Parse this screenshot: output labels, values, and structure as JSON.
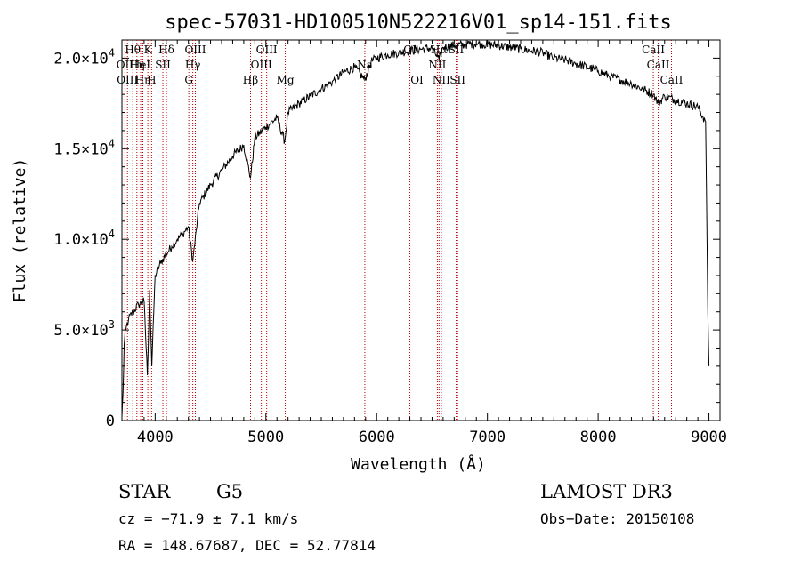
{
  "chart_data": {
    "type": "line",
    "title": "spec-57031-HD100510N522216V01_sp14-151.fits",
    "xlabel": "Wavelength (Å)",
    "ylabel": "Flux (relative)",
    "xlim": [
      3700,
      9100
    ],
    "ylim": [
      0,
      21000
    ],
    "x_ticks": [
      {
        "value": 4000,
        "label": "4000"
      },
      {
        "value": 5000,
        "label": "5000"
      },
      {
        "value": 6000,
        "label": "6000"
      },
      {
        "value": 7000,
        "label": "7000"
      },
      {
        "value": 8000,
        "label": "8000"
      },
      {
        "value": 9000,
        "label": "9000"
      }
    ],
    "y_ticks": [
      {
        "value": 0,
        "mant": "0",
        "exp": ""
      },
      {
        "value": 5000,
        "mant": "5.0×10",
        "exp": "3"
      },
      {
        "value": 10000,
        "mant": "1.0×10",
        "exp": "4"
      },
      {
        "value": 15000,
        "mant": "1.5×10",
        "exp": "4"
      },
      {
        "value": 20000,
        "mant": "2.0×10",
        "exp": "4"
      }
    ],
    "series": [
      {
        "name": "spectrum",
        "x": [
          3700,
          3710,
          3720,
          3735,
          3760,
          3800,
          3850,
          3900,
          3930,
          3950,
          3970,
          4000,
          4050,
          4100,
          4150,
          4200,
          4250,
          4300,
          4340,
          4400,
          4500,
          4600,
          4700,
          4800,
          4861,
          4900,
          5000,
          5100,
          5170,
          5200,
          5300,
          5400,
          5500,
          5600,
          5700,
          5800,
          5893,
          5950,
          6000,
          6100,
          6200,
          6300,
          6400,
          6500,
          6563,
          6600,
          6700,
          6800,
          6900,
          7000,
          7100,
          7200,
          7300,
          7400,
          7500,
          7600,
          7700,
          7800,
          7900,
          8000,
          8100,
          8200,
          8300,
          8400,
          8500,
          8542,
          8600,
          8700,
          8800,
          8900,
          8970,
          8990,
          9000
        ],
        "y": [
          200,
          1500,
          4200,
          5000,
          5600,
          6000,
          6400,
          6600,
          2500,
          7200,
          3000,
          8000,
          8700,
          9200,
          9600,
          10000,
          10300,
          10700,
          8800,
          12000,
          13000,
          13800,
          14600,
          15200,
          13400,
          15600,
          16200,
          16700,
          15400,
          17000,
          17500,
          17900,
          18300,
          18700,
          19200,
          19500,
          18800,
          19800,
          20000,
          20200,
          20300,
          20400,
          20500,
          20550,
          19900,
          20600,
          20700,
          20750,
          20800,
          20750,
          20700,
          20600,
          20500,
          20400,
          20300,
          20000,
          19900,
          19700,
          19500,
          19300,
          19000,
          18800,
          18600,
          18300,
          18000,
          17500,
          17900,
          17700,
          17500,
          17300,
          16500,
          6000,
          3000
        ]
      }
    ],
    "lines": [
      {
        "wl": 3727,
        "label": "OII",
        "row": 1
      },
      {
        "wl": 3750,
        "label": "OIII",
        "row": 2
      },
      {
        "wl": 3798,
        "label": "Hθ",
        "row": 0
      },
      {
        "wl": 3835,
        "label": "Hη",
        "row": 1
      },
      {
        "wl": 3869,
        "label": "HeI",
        "row": 1
      },
      {
        "wl": 3889,
        "label": "Hη",
        "row": 2
      },
      {
        "wl": 3934,
        "label": "K",
        "row": 0
      },
      {
        "wl": 3968,
        "label": "H",
        "row": 2
      },
      {
        "wl": 4070,
        "label": "SII",
        "row": 1
      },
      {
        "wl": 4102,
        "label": "Hδ",
        "row": 0
      },
      {
        "wl": 4304,
        "label": "G",
        "row": 2
      },
      {
        "wl": 4340,
        "label": "Hγ",
        "row": 1
      },
      {
        "wl": 4363,
        "label": "OIII",
        "row": 0
      },
      {
        "wl": 4861,
        "label": "Hβ",
        "row": 2
      },
      {
        "wl": 4959,
        "label": "OIII",
        "row": 1
      },
      {
        "wl": 5007,
        "label": "OIII",
        "row": 0
      },
      {
        "wl": 5175,
        "label": "Mg",
        "row": 2
      },
      {
        "wl": 5893,
        "label": "Na",
        "row": 1
      },
      {
        "wl": 6300,
        "label": "OI",
        "row": 0
      },
      {
        "wl": 6364,
        "label": "OI",
        "row": 2
      },
      {
        "wl": 6548,
        "label": "NII",
        "row": 1
      },
      {
        "wl": 6563,
        "label": "Hα",
        "row": 0
      },
      {
        "wl": 6584,
        "label": "NII",
        "row": 2
      },
      {
        "wl": 6717,
        "label": "SII",
        "row": 0
      },
      {
        "wl": 6731,
        "label": "SII",
        "row": 2
      },
      {
        "wl": 8498,
        "label": "CaII",
        "row": 0
      },
      {
        "wl": 8542,
        "label": "CaII",
        "row": 1
      },
      {
        "wl": 8662,
        "label": "CaII",
        "row": 2
      }
    ]
  },
  "info": {
    "object_class": "STAR",
    "subclass": "G5",
    "survey": "LAMOST DR3",
    "cz": "cz = −71.9 ± 7.1 km/s",
    "obs_date": "Obs−Date: 20150108",
    "coords": "RA = 148.67687, DEC =  52.77814"
  }
}
